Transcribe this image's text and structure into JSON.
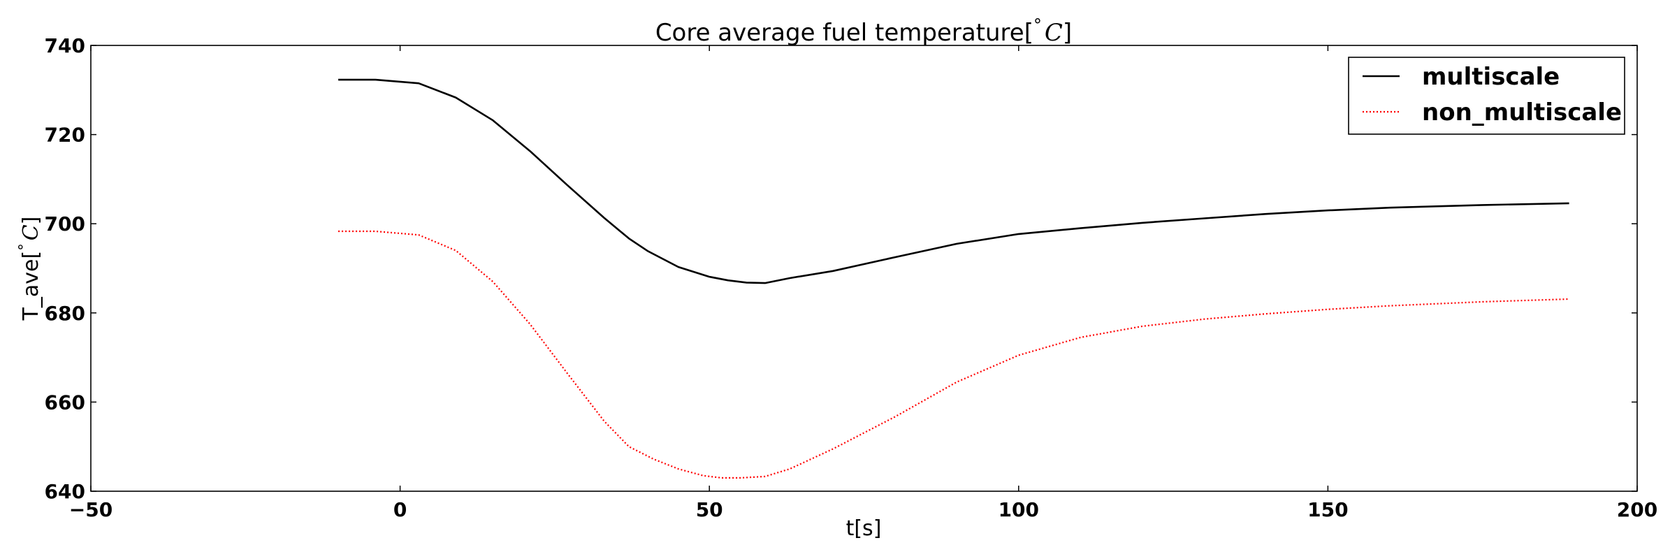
{
  "chart_data": {
    "type": "line",
    "title": "Core average fuel temperature[$^\\circ C$]",
    "xlabel": "t[s]",
    "ylabel": "T_ave[$^\\circ C$]",
    "xlim": [
      -50,
      200
    ],
    "ylim": [
      640,
      740
    ],
    "xticks": [
      -50,
      0,
      50,
      100,
      150,
      200
    ],
    "yticks": [
      640,
      660,
      680,
      700,
      720,
      740
    ],
    "xtick_labels": [
      "−50",
      "0",
      "50",
      "100",
      "150",
      "200"
    ],
    "ytick_labels": [
      "640",
      "660",
      "680",
      "700",
      "720",
      "740"
    ],
    "grid": false,
    "legend_position": "top-right",
    "series": [
      {
        "name": "multiscale",
        "color": "#000000",
        "style": "solid",
        "x": [
          -10,
          -4,
          3,
          9,
          15,
          21,
          27,
          33,
          37,
          40,
          45,
          50,
          53,
          56,
          59,
          63,
          70,
          80,
          90,
          100,
          110,
          120,
          130,
          140,
          150,
          160,
          175,
          189
        ],
        "y": [
          732.3,
          732.3,
          731.5,
          728.3,
          723.2,
          716.3,
          708.7,
          701.3,
          696.7,
          693.9,
          690.3,
          688.1,
          687.3,
          686.8,
          686.7,
          687.8,
          689.4,
          692.5,
          695.5,
          697.7,
          699.0,
          700.2,
          701.2,
          702.2,
          703.0,
          703.6,
          704.2,
          704.6
        ]
      },
      {
        "name": "non_multiscale",
        "color": "#ff0000",
        "style": "dotted",
        "x": [
          -10,
          -4,
          3,
          9,
          15,
          21,
          27,
          33,
          37,
          41,
          45,
          49,
          52,
          55,
          59,
          63,
          70,
          80,
          90,
          100,
          110,
          120,
          130,
          140,
          150,
          160,
          175,
          189
        ],
        "y": [
          698.3,
          698.3,
          697.5,
          694.0,
          687.0,
          677.5,
          666.5,
          655.7,
          650.0,
          647.2,
          645.0,
          643.5,
          643.0,
          643.0,
          643.3,
          645.0,
          649.5,
          656.7,
          664.5,
          670.5,
          674.5,
          677.0,
          678.6,
          679.8,
          680.8,
          681.6,
          682.5,
          683.1
        ]
      }
    ]
  }
}
